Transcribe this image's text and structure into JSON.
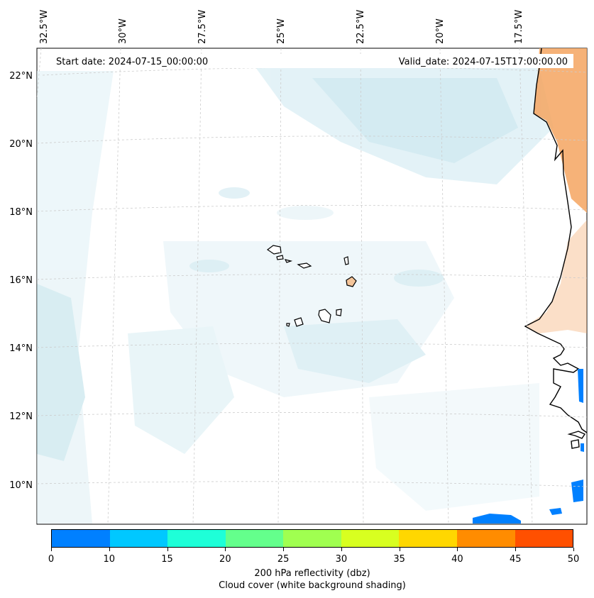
{
  "header": {
    "start_date": "Start date: 2024-07-15_00:00:00",
    "valid_date": "Valid_date: 2024-07-15T17:00:00.00"
  },
  "map": {
    "lon_labels": [
      "32.5°W",
      "30°W",
      "27.5°W",
      "25°W",
      "22.5°W",
      "20°W",
      "17.5°W"
    ],
    "lat_labels": [
      "22°N",
      "20°N",
      "18°N",
      "16°N",
      "14°N",
      "12°N",
      "10°N"
    ],
    "colors": {
      "cloud": "#add8e6",
      "land_warm": "#f4a460",
      "coast": "#000000",
      "grid": "#cccccc",
      "echo": "#0080ff"
    }
  },
  "colorbar": {
    "ticks": [
      "0",
      "10",
      "15",
      "20",
      "25",
      "30",
      "35",
      "40",
      "45",
      "50"
    ],
    "colors": [
      "#0080ff",
      "#00c8ff",
      "#1effd8",
      "#64ff8c",
      "#a0ff50",
      "#d8ff20",
      "#ffd700",
      "#ff8c00",
      "#ff5000"
    ],
    "label": "200 hPa reflectivity (dbz)",
    "sublabel": "Cloud cover (white background shading)"
  }
}
